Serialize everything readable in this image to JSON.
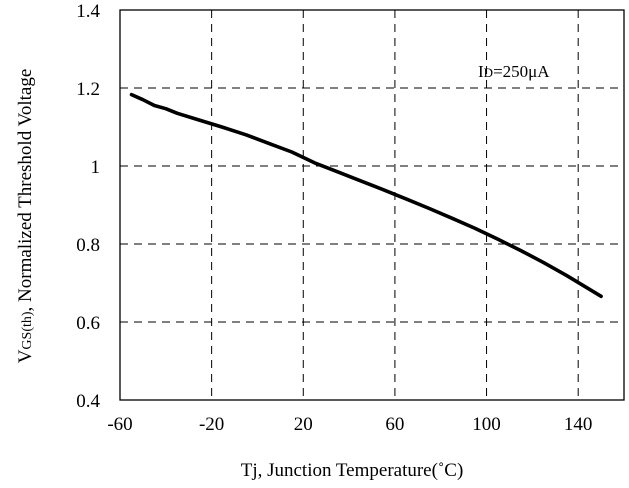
{
  "chart_data": {
    "type": "line",
    "ylabel": "VGS(th), Normalized Threshold Voltage",
    "ylabel_main": "V",
    "ylabel_sub": "GS(th)",
    "ylabel_rest": ", Normalized Threshold Voltage",
    "xlabel": "Tj, Junction Temperature(˚C)",
    "xlim": [
      -60,
      160
    ],
    "ylim": [
      0.4,
      1.4
    ],
    "x_ticks": [
      -60,
      -20,
      20,
      60,
      100,
      140
    ],
    "x_tick_labels": [
      "-60",
      "-20",
      "20",
      "60",
      "100",
      "140"
    ],
    "y_ticks": [
      0.4,
      0.6,
      0.8,
      1.0,
      1.2,
      1.4
    ],
    "y_tick_labels": [
      "0.4",
      "0.6",
      "0.8",
      "1",
      "1.2",
      "1.4"
    ],
    "grid": true,
    "grid_style": "dashed",
    "annotation": {
      "text": "ID=250μA",
      "main": "I",
      "sub": "D",
      "rest": "=250μA"
    },
    "series": [
      {
        "color": "#000000",
        "x": [
          -55,
          -50,
          -45,
          -40,
          -35,
          -25,
          -15,
          -5,
          5,
          15,
          25,
          35,
          45,
          55,
          65,
          75,
          85,
          95,
          105,
          115,
          125,
          135,
          150
        ],
        "y": [
          1.183,
          1.17,
          1.155,
          1.147,
          1.135,
          1.117,
          1.099,
          1.08,
          1.058,
          1.036,
          1.008,
          0.985,
          0.962,
          0.939,
          0.915,
          0.891,
          0.866,
          0.84,
          0.812,
          0.783,
          0.752,
          0.719,
          0.666
        ]
      }
    ]
  }
}
